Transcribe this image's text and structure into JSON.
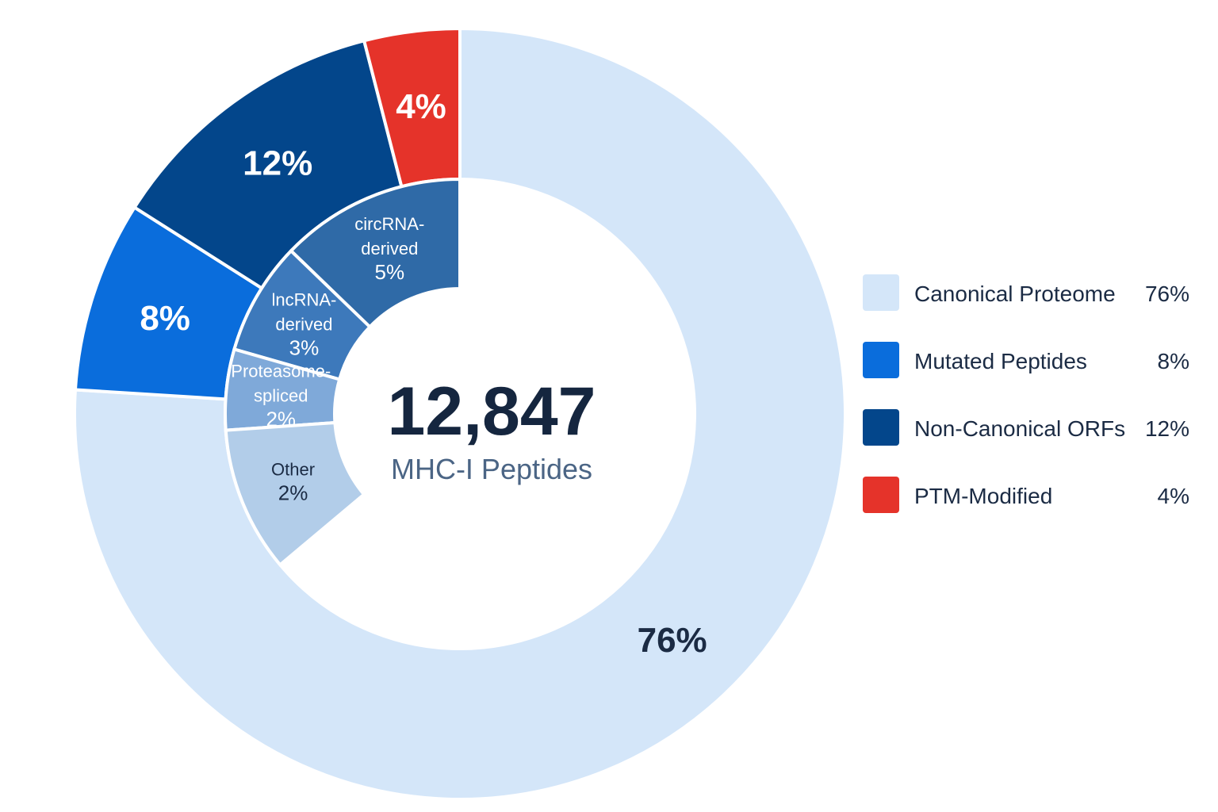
{
  "chart_data": {
    "type": "pie",
    "variant": "nested-donut",
    "center": {
      "total": "12,847",
      "caption": "MHC-I Peptides"
    },
    "outer_ring": [
      {
        "name": "Canonical Proteome",
        "value": 76,
        "label": "76%",
        "color": "#d4e6f9",
        "label_color": "#1b2b44"
      },
      {
        "name": "Mutated Peptides",
        "value": 8,
        "label": "8%",
        "color": "#0a6ddc",
        "label_color": "#ffffff"
      },
      {
        "name": "Non-Canonical ORFs",
        "value": 12,
        "label": "12%",
        "color": "#03468b",
        "label_color": "#ffffff"
      },
      {
        "name": "PTM-Modified",
        "value": 4,
        "label": "4%",
        "color": "#e5332a",
        "label_color": "#ffffff"
      }
    ],
    "inner_ring": [
      {
        "name": "circRNA-derived",
        "lines": [
          "circRNA-",
          "derived",
          "5%"
        ],
        "value": 5,
        "color": "#2f6aa7",
        "label_color": "#ffffff"
      },
      {
        "name": "lncRNA-derived",
        "lines": [
          "lncRNA-",
          "derived",
          "3%"
        ],
        "value": 3,
        "color": "#3d79bb",
        "label_color": "#ffffff"
      },
      {
        "name": "Proteasome-spliced",
        "lines": [
          "Proteasome-",
          "spliced",
          "2%"
        ],
        "value": 2,
        "color": "#7fa9d9",
        "label_color": "#ffffff"
      },
      {
        "name": "Other",
        "lines": [
          "Other",
          "2%"
        ],
        "value": 2,
        "color": "#b2cde9",
        "label_color": "#1b2b44"
      }
    ],
    "legend": [
      {
        "label": "Canonical Proteome",
        "value": "76%",
        "color": "#d4e6f9"
      },
      {
        "label": "Mutated Peptides",
        "value": "8%",
        "color": "#0a6ddc"
      },
      {
        "label": "Non-Canonical ORFs",
        "value": "12%",
        "color": "#03468b"
      },
      {
        "label": "PTM-Modified",
        "value": "4%",
        "color": "#e5332a"
      }
    ],
    "legend_position": "right"
  }
}
